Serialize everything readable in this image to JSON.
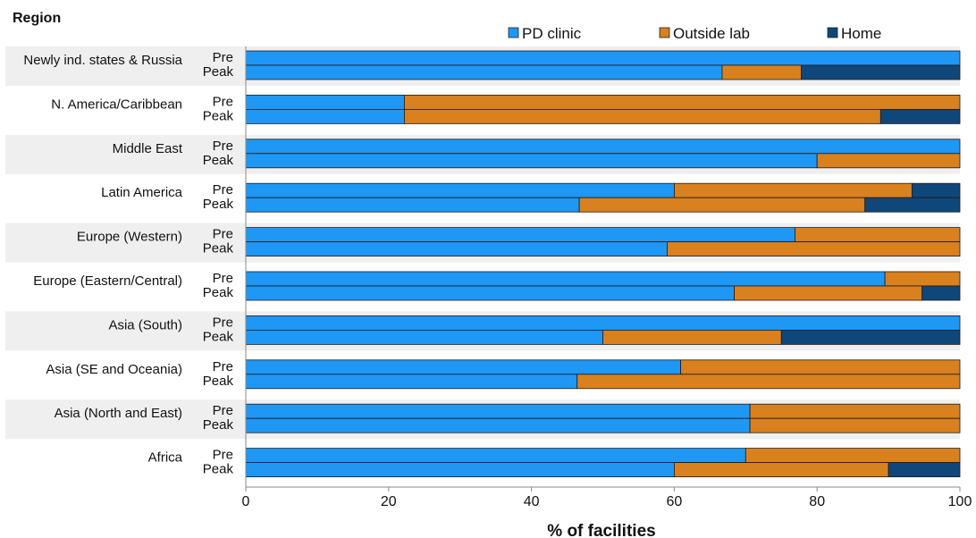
{
  "chart_data": {
    "type": "bar",
    "stacked": true,
    "orientation": "horizontal",
    "title": "",
    "xlabel": "% of facilities",
    "ylabel": "Region",
    "xlim": [
      0,
      100
    ],
    "xticks": [
      "0",
      "20",
      "40",
      "60",
      "80",
      "100"
    ],
    "legend_position": "top-right",
    "series": [
      {
        "name": "PD clinic",
        "color": "#1f97f5"
      },
      {
        "name": "Outside lab",
        "color": "#d9801f"
      },
      {
        "name": "Home",
        "color": "#0f477a"
      }
    ],
    "groups": [
      {
        "region": "Newly ind. states & Russia",
        "bars": [
          {
            "label": "Pre",
            "values": [
              100,
              0,
              0
            ]
          },
          {
            "label": "Peak",
            "values": [
              66.7,
              11.1,
              22.2
            ]
          }
        ]
      },
      {
        "region": "N. America/Caribbean",
        "bars": [
          {
            "label": "Pre",
            "values": [
              22.2,
              77.8,
              0
            ]
          },
          {
            "label": "Peak",
            "values": [
              22.2,
              66.7,
              11.1
            ]
          }
        ]
      },
      {
        "region": "Middle East",
        "bars": [
          {
            "label": "Pre",
            "values": [
              100,
              0,
              0
            ]
          },
          {
            "label": "Peak",
            "values": [
              80,
              20,
              0
            ]
          }
        ]
      },
      {
        "region": "Latin America",
        "bars": [
          {
            "label": "Pre",
            "values": [
              60,
              33.3,
              6.7
            ]
          },
          {
            "label": "Peak",
            "values": [
              46.7,
              40,
              13.3
            ]
          }
        ]
      },
      {
        "region": "Europe (Western)",
        "bars": [
          {
            "label": "Pre",
            "values": [
              76.9,
              23.1,
              0
            ]
          },
          {
            "label": "Peak",
            "values": [
              59,
              41,
              0
            ]
          }
        ]
      },
      {
        "region": "Europe (Eastern/Central)",
        "bars": [
          {
            "label": "Pre",
            "values": [
              89.5,
              10.5,
              0
            ]
          },
          {
            "label": "Peak",
            "values": [
              68.4,
              26.3,
              5.3
            ]
          }
        ]
      },
      {
        "region": "Asia (South)",
        "bars": [
          {
            "label": "Pre",
            "values": [
              100,
              0,
              0
            ]
          },
          {
            "label": "Peak",
            "values": [
              50,
              25,
              25
            ]
          }
        ]
      },
      {
        "region": "Asia (SE and Oceania)",
        "bars": [
          {
            "label": "Pre",
            "values": [
              60.9,
              39.1,
              0
            ]
          },
          {
            "label": "Peak",
            "values": [
              46.4,
              53.6,
              0
            ]
          }
        ]
      },
      {
        "region": "Asia (North and East)",
        "bars": [
          {
            "label": "Pre",
            "values": [
              70.6,
              29.4,
              0
            ]
          },
          {
            "label": "Peak",
            "values": [
              70.6,
              29.4,
              0
            ]
          }
        ]
      },
      {
        "region": "Africa",
        "bars": [
          {
            "label": "Pre",
            "values": [
              70,
              30,
              0
            ]
          },
          {
            "label": "Peak",
            "values": [
              60,
              30,
              10
            ]
          }
        ]
      }
    ]
  }
}
